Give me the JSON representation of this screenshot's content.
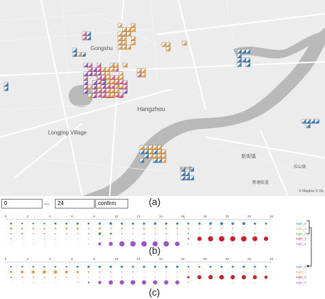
{
  "map": {
    "labels": [
      {
        "text": "Gongshu",
        "key": "gongshu"
      },
      {
        "text": "Hangzhou",
        "key": "hangzhou"
      },
      {
        "text": "Longjing Village",
        "key": "longjing"
      },
      {
        "text": "新街镇",
        "key": "xinjie"
      },
      {
        "text": "坎山镇",
        "key": "kanshan"
      },
      {
        "text": "长河镇",
        "key": "changhe"
      },
      {
        "text": "新塘街道",
        "key": "xintang"
      }
    ],
    "attribution": "© Mapbox © Op",
    "colors": {
      "water": "#b9b9b9",
      "land": "#ececec",
      "road": "#ffffff",
      "blue": "#3b7fc4",
      "orange": "#f39a3a",
      "pink": "#e05a8a",
      "purple": "#8a54c2"
    }
  },
  "panels": {
    "a": "(a)",
    "b": "(b)",
    "c": "(c)"
  },
  "controls": {
    "start_value": "0",
    "dash": "—",
    "end_value": "24",
    "confirm_label": "confirm"
  },
  "chart_data": [
    {
      "type": "scatter",
      "name_panel": "(b)",
      "x": [
        0,
        1,
        2,
        3,
        4,
        5,
        6,
        7,
        8,
        9,
        10,
        11,
        12,
        13,
        14,
        15,
        16,
        17,
        18,
        19,
        20,
        21,
        22,
        23
      ],
      "tick_labels": [
        "0",
        "2",
        "4",
        "6",
        "8",
        "10",
        "12",
        "14",
        "16",
        "18",
        "20",
        "22",
        "24"
      ],
      "series": [
        {
          "name": "topic_0",
          "color": "#3b7fc4",
          "values": [
            0.7,
            0.6,
            0.6,
            0.6,
            0.7,
            0.7,
            0.8,
            0.7,
            0.8,
            0.9,
            0.8,
            0.8,
            0.8,
            0.9,
            0.8,
            0.8,
            0.7,
            0.8,
            0.9,
            1.0,
            0.9,
            1.0,
            0.8,
            0.7
          ]
        },
        {
          "name": "topic_1",
          "color": "#f39a3a",
          "values": [
            0.8,
            0.6,
            0.6,
            0.6,
            0.6,
            0.7,
            0.7,
            0.5,
            0.7,
            0.5,
            0.6,
            0.4,
            0.6,
            0.4,
            0.6,
            0.5,
            0.5,
            0.4,
            0.5,
            0.4,
            0.4,
            0.4,
            0.3,
            0.3
          ]
        },
        {
          "name": "topic_2",
          "color": "#3a9a47",
          "values": [
            0.4,
            0.5,
            0.3,
            0.4,
            0.3,
            0.4,
            0.3,
            0.4,
            0.9,
            0.7,
            0.4,
            0.3,
            0.4,
            0.3,
            0.4,
            0.3,
            0.4,
            0.3,
            0.3,
            0.3,
            0.3,
            0.3,
            0.3,
            0.2
          ]
        },
        {
          "name": "topic_3",
          "color": "#c8222b",
          "values": [
            0.3,
            0.2,
            0.2,
            0.2,
            0.2,
            0.2,
            0.2,
            0.2,
            0.2,
            0.2,
            0.2,
            0.2,
            0.2,
            0.2,
            0.2,
            0.2,
            0.5,
            1.5,
            1.8,
            1.9,
            1.8,
            1.9,
            1.7,
            1.5
          ]
        },
        {
          "name": "topic_4",
          "color": "#9a55c8",
          "values": [
            0.1,
            0.1,
            0.1,
            0.1,
            0.1,
            0.1,
            0.1,
            0.2,
            1.0,
            1.4,
            1.8,
            1.9,
            1.9,
            1.8,
            1.9,
            1.6,
            0.3,
            0.2,
            0.2,
            0.2,
            0.2,
            0.2,
            0.2,
            0.1
          ]
        }
      ]
    },
    {
      "type": "scatter",
      "name_panel": "(c)",
      "x": [
        0,
        1,
        2,
        3,
        4,
        5,
        6,
        7,
        8,
        9,
        10,
        11,
        12,
        13,
        14,
        15,
        16,
        17,
        18,
        19,
        20,
        21,
        22,
        23
      ],
      "tick_labels": [
        "0",
        "2",
        "4",
        "6",
        "8",
        "10",
        "12",
        "14",
        "16",
        "18",
        "20",
        "22",
        "24"
      ],
      "series": [
        {
          "name": "topic_0",
          "color": "#3b7fc4",
          "values": [
            0.6,
            0.6,
            0.6,
            0.6,
            0.6,
            0.6,
            0.7,
            0.8,
            0.8,
            0.8,
            0.8,
            0.7,
            0.8,
            0.8,
            0.8,
            0.8,
            0.6,
            0.6,
            0.7,
            0.7,
            0.7,
            0.8,
            0.7,
            0.6
          ]
        },
        {
          "name": "topic_1",
          "color": "#f39a3a",
          "values": [
            0.8,
            1.0,
            1.1,
            1.2,
            1.2,
            1.0,
            0.8,
            0.6,
            0.5,
            0.4,
            0.4,
            0.4,
            0.3,
            0.3,
            0.3,
            0.3,
            0.3,
            0.3,
            0.3,
            0.3,
            0.3,
            0.3,
            0.3,
            0.3
          ]
        },
        {
          "name": "topic_3",
          "color": "#c8222b",
          "values": [
            0.4,
            0.3,
            0.3,
            0.3,
            0.3,
            0.3,
            0.2,
            0.2,
            0.2,
            0.2,
            0.2,
            0.2,
            0.2,
            0.2,
            0.2,
            0.2,
            0.8,
            1.4,
            1.5,
            1.6,
            1.5,
            1.5,
            1.4,
            1.1
          ]
        },
        {
          "name": "topic_4",
          "color": "#9a55c8",
          "values": [
            0.2,
            0.2,
            0.2,
            0.2,
            0.2,
            0.2,
            0.3,
            0.6,
            1.1,
            1.5,
            1.5,
            1.6,
            1.5,
            1.5,
            1.5,
            1.4,
            0.3,
            0.2,
            0.2,
            0.2,
            0.2,
            0.2,
            0.2,
            0.2
          ]
        }
      ]
    }
  ]
}
